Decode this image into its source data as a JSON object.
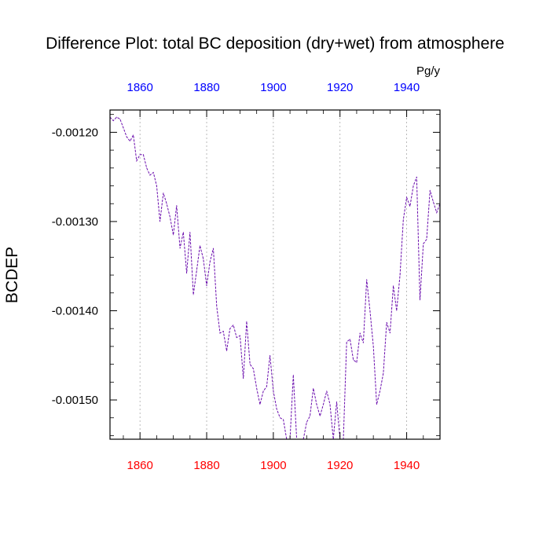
{
  "chart_data": {
    "type": "line",
    "title": "Difference Plot: total BC deposition (dry+wet) from atmosphere",
    "unit_label": "Pg/y",
    "ylabel": "BCDEP",
    "xlabel": "",
    "xlim": [
      1851,
      1950
    ],
    "ylim": [
      -0.001544,
      -0.001175
    ],
    "x_ticks": [
      1860,
      1880,
      1900,
      1920,
      1940
    ],
    "x_tick_labels_top": [
      "1860",
      "1880",
      "1900",
      "1920",
      "1940"
    ],
    "x_tick_labels_bottom": [
      "1860",
      "1880",
      "1900",
      "1920",
      "1940"
    ],
    "y_ticks": [
      -0.0012,
      -0.0013,
      -0.0014,
      -0.0015
    ],
    "y_tick_labels": [
      "-0.00120",
      "-0.00130",
      "-0.00140",
      "-0.00150"
    ],
    "grid": "vertical-dashed",
    "colors": {
      "series_line": "#6a0dad",
      "top_ticks": "#0000ff",
      "bottom_ticks": "#ff0000",
      "grid": "#aaaaaa",
      "axes": "#000000"
    },
    "series": [
      {
        "x": [
          1851,
          1852,
          1853,
          1854,
          1855,
          1856,
          1857,
          1858,
          1859,
          1860,
          1861,
          1862,
          1863,
          1864,
          1865,
          1866,
          1867,
          1868,
          1869,
          1870,
          1871,
          1872,
          1873,
          1874,
          1875,
          1876,
          1877,
          1878,
          1879,
          1880,
          1881,
          1882,
          1883,
          1884,
          1885,
          1886,
          1887,
          1888,
          1889,
          1890,
          1891,
          1892,
          1893,
          1894,
          1895,
          1896,
          1897,
          1898,
          1899,
          1900,
          1901,
          1902,
          1903,
          1904,
          1905,
          1906,
          1907,
          1908,
          1909,
          1910,
          1911,
          1912,
          1913,
          1914,
          1915,
          1916,
          1917,
          1918,
          1919,
          1920,
          1921,
          1922,
          1923,
          1924,
          1925,
          1926,
          1927,
          1928,
          1929,
          1930,
          1931,
          1932,
          1933,
          1934,
          1935,
          1936,
          1937,
          1938,
          1939,
          1940,
          1941,
          1942,
          1943,
          1944,
          1945,
          1946,
          1947,
          1948,
          1949,
          1950
        ],
        "values": [
          -0.001183,
          -0.001187,
          -0.001183,
          -0.001185,
          -0.001195,
          -0.001205,
          -0.00121,
          -0.001203,
          -0.001232,
          -0.001225,
          -0.001225,
          -0.00124,
          -0.001248,
          -0.001245,
          -0.00126,
          -0.0013,
          -0.001268,
          -0.00128,
          -0.001295,
          -0.001315,
          -0.001282,
          -0.00133,
          -0.001312,
          -0.001358,
          -0.001312,
          -0.001382,
          -0.001355,
          -0.001327,
          -0.001342,
          -0.001372,
          -0.001345,
          -0.00133,
          -0.001395,
          -0.001425,
          -0.001423,
          -0.001445,
          -0.00142,
          -0.001416,
          -0.00143,
          -0.001428,
          -0.001476,
          -0.001412,
          -0.00146,
          -0.001465,
          -0.001487,
          -0.001505,
          -0.00149,
          -0.001485,
          -0.00145,
          -0.00149,
          -0.00151,
          -0.00152,
          -0.001522,
          -0.001544,
          -0.001544,
          -0.001472,
          -0.001544,
          -0.001544,
          -0.001544,
          -0.001525,
          -0.001518,
          -0.001487,
          -0.001505,
          -0.001518,
          -0.001505,
          -0.00149,
          -0.001505,
          -0.001544,
          -0.001502,
          -0.001544,
          -0.001544,
          -0.001435,
          -0.001432,
          -0.001455,
          -0.001458,
          -0.001425,
          -0.001436,
          -0.001365,
          -0.0014,
          -0.00144,
          -0.001505,
          -0.00149,
          -0.00147,
          -0.001413,
          -0.001425,
          -0.001372,
          -0.0014,
          -0.00136,
          -0.001298,
          -0.001273,
          -0.001283,
          -0.00126,
          -0.00125,
          -0.001388,
          -0.001325,
          -0.00132,
          -0.001265,
          -0.001278,
          -0.00129,
          -0.00128
        ]
      }
    ]
  }
}
